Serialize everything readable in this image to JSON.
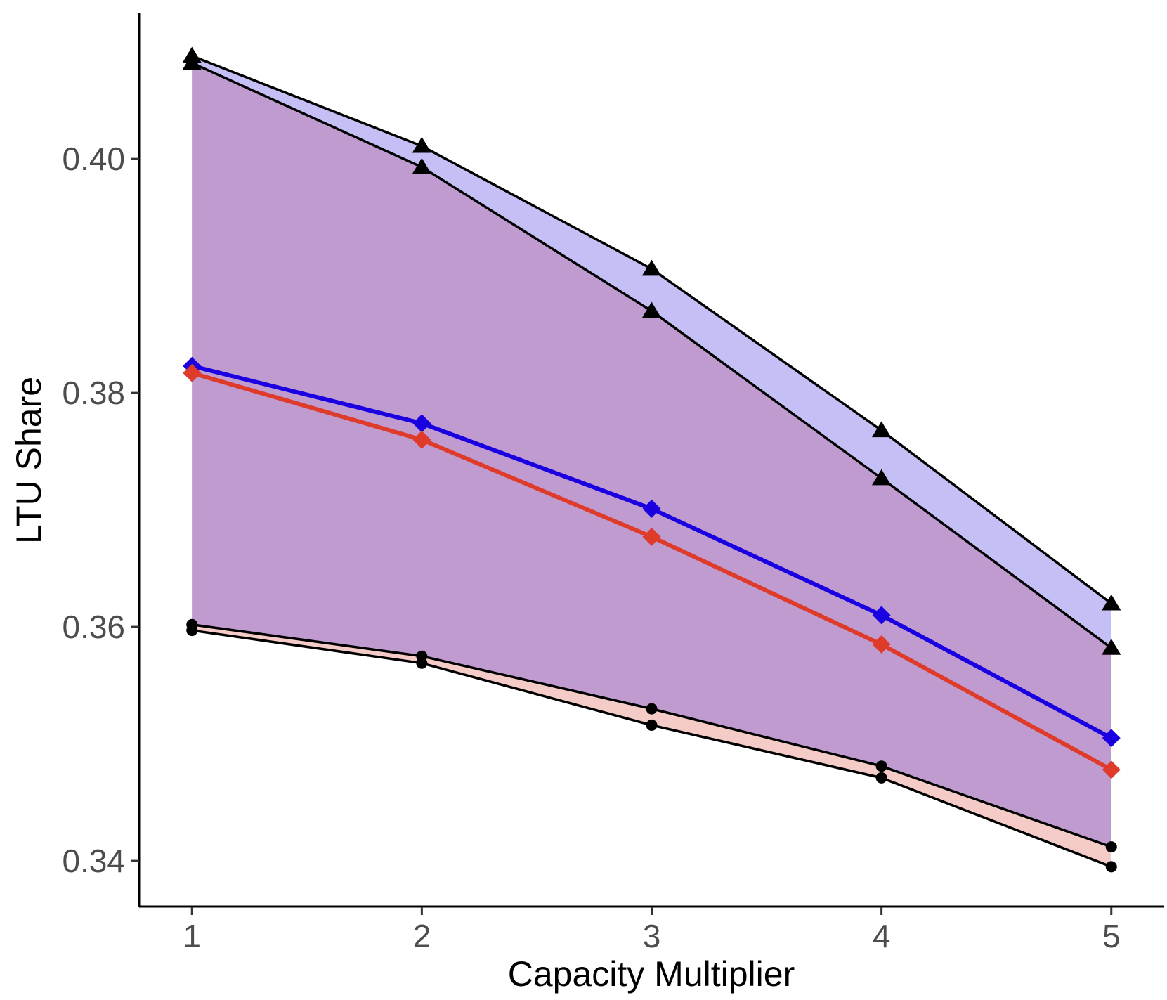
{
  "chart_data": {
    "type": "line",
    "title": "",
    "xlabel": "Capacity Multiplier",
    "ylabel": "LTU Share",
    "x": [
      1,
      2,
      3,
      4,
      5
    ],
    "x_ticks": [
      "1",
      "2",
      "3",
      "4",
      "5"
    ],
    "y_ticks": [
      "0.34",
      "0.36",
      "0.38",
      "0.40"
    ],
    "y_tick_values": [
      0.34,
      0.36,
      0.38,
      0.4
    ],
    "xlim": [
      0.77,
      5.23
    ],
    "ylim": [
      0.3361,
      0.4125
    ],
    "grid": false,
    "legend": "none",
    "series": [
      {
        "values": [
          0.3823,
          0.3774,
          0.3701,
          0.361,
          0.3505
        ],
        "color": "#1a00e0",
        "marker": "diamond"
      },
      {
        "values": [
          0.3817,
          0.376,
          0.3677,
          0.3585,
          0.3478
        ],
        "color": "#de3b2b",
        "marker": "diamond"
      }
    ],
    "bands": [
      {
        "fill": "#c4bff5",
        "upper": [
          0.4088,
          0.4011,
          0.3906,
          0.3768,
          0.362
        ],
        "lower": [
          0.3602,
          0.3575,
          0.353,
          0.3481,
          0.3412
        ]
      },
      {
        "fill": "#f4cbc6",
        "upper": [
          0.4082,
          0.3993,
          0.387,
          0.3727,
          0.3582
        ],
        "lower": [
          0.3597,
          0.3569,
          0.3516,
          0.3471,
          0.3395
        ]
      }
    ],
    "overlap_fill": "#c09bd0"
  }
}
